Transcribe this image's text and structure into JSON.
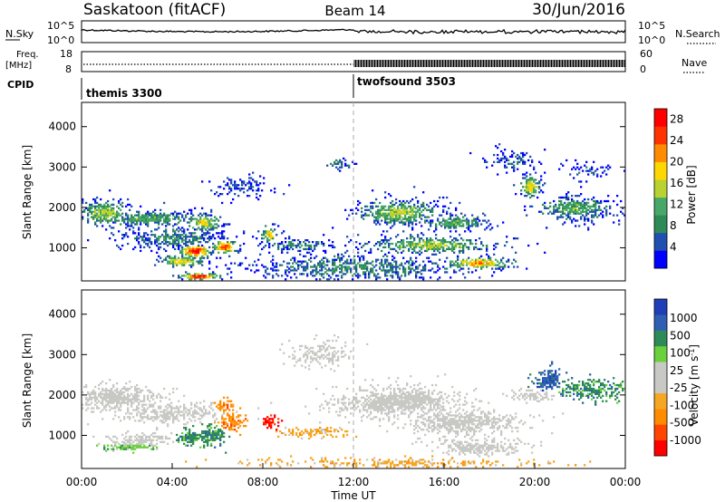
{
  "header": {
    "station": "Saskatoon (fitACF)",
    "beam": "Beam 14",
    "date": "30/Jun/2016"
  },
  "noise_panel": {
    "left_label": "N.Sky",
    "right_label": "N.Search",
    "left_ticks": [
      "10^5",
      "10^0"
    ],
    "right_ticks": [
      "10^5",
      "10^0"
    ]
  },
  "freq_panel": {
    "left_label_line1": "Freq.",
    "left_label_line2": "[MHz]",
    "right_label": "Nave",
    "left_ticks": [
      "18",
      "8"
    ],
    "right_ticks": [
      "60",
      "0"
    ]
  },
  "cpid": {
    "label": "CPID",
    "programs": [
      {
        "name": "themis 3300",
        "start_hour": 0
      },
      {
        "name": "twofsound 3503",
        "start_hour": 12
      }
    ]
  },
  "colors": {
    "power_scale": [
      "#0000ff",
      "#1f4fb0",
      "#2e8b57",
      "#48a868",
      "#b8d232",
      "#ffd700",
      "#ff8c00",
      "#ff3300",
      "#ff0000"
    ],
    "velocity_scale": [
      "#ff0000",
      "#ff4500",
      "#ff8c00",
      "#f5a623",
      "#c8c8c4",
      "#c8c8c4",
      "#6ad13c",
      "#2e8b57",
      "#2f5fb3",
      "#1f3fb8"
    ],
    "ground_scatter": "#c8c8c4"
  },
  "chart_data": [
    {
      "type": "heatmap",
      "panel": "power",
      "ylabel": "Slant Range [km]",
      "ylim": [
        180,
        4600
      ],
      "xlim": [
        0,
        24
      ],
      "y_ticks": [
        1000,
        2000,
        3000,
        4000
      ],
      "colorbar_label": "Power [dB]",
      "colorbar_ticks": [
        "4",
        "8",
        "12",
        "16",
        "20",
        "24",
        "28"
      ],
      "colorbar_range": [
        0,
        30
      ]
    },
    {
      "type": "heatmap",
      "panel": "velocity",
      "ylabel": "Slant Range [km]",
      "xlabel": "Time UT",
      "ylim": [
        180,
        4600
      ],
      "xlim": [
        0,
        24
      ],
      "y_ticks": [
        1000,
        2000,
        3000,
        4000
      ],
      "x_ticks": [
        "00:00",
        "04:00",
        "08:00",
        "12:00",
        "16:00",
        "20:00",
        "00:00"
      ],
      "colorbar_label": "Velocity [m s-1]",
      "colorbar_ticks": [
        "1000",
        "500",
        "100",
        "25",
        "-25",
        "-100",
        "-500",
        "-1000"
      ]
    }
  ]
}
